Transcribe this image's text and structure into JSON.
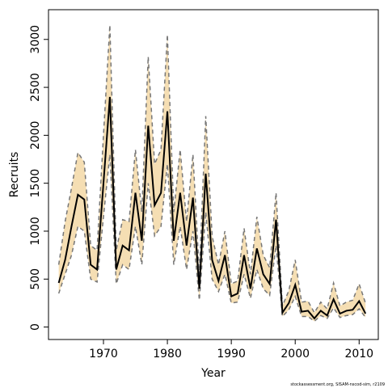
{
  "chart_data": {
    "type": "line",
    "x_label": "Year",
    "y_label": "Recruits",
    "footnote": "stockassessment.org, SISAM-nscod-sim, r2109",
    "x": [
      1963,
      1964,
      1965,
      1966,
      1967,
      1968,
      1969,
      1970,
      1971,
      1972,
      1973,
      1974,
      1975,
      1976,
      1977,
      1978,
      1979,
      1980,
      1981,
      1982,
      1983,
      1984,
      1985,
      1986,
      1987,
      1988,
      1989,
      1990,
      1991,
      1992,
      1993,
      1994,
      1995,
      1996,
      1997,
      1998,
      1999,
      2000,
      2001,
      2002,
      2003,
      2004,
      2005,
      2006,
      2007,
      2008,
      2009,
      2010,
      2011
    ],
    "values": [
      460,
      700,
      1050,
      1380,
      1330,
      650,
      600,
      1500,
      2400,
      600,
      850,
      800,
      1400,
      900,
      2100,
      1270,
      1400,
      2250,
      900,
      1400,
      850,
      1350,
      400,
      1600,
      700,
      480,
      750,
      320,
      350,
      750,
      400,
      820,
      550,
      450,
      1120,
      150,
      250,
      440,
      160,
      170,
      90,
      170,
      120,
      290,
      140,
      170,
      180,
      270,
      140
    ],
    "upper": [
      650,
      1100,
      1450,
      1820,
      1720,
      850,
      800,
      2000,
      3150,
      800,
      1120,
      1100,
      1850,
      1200,
      2820,
      1700,
      1850,
      3050,
      1200,
      1850,
      1100,
      1800,
      550,
      2200,
      950,
      650,
      1000,
      450,
      480,
      1030,
      550,
      1150,
      750,
      620,
      1400,
      220,
      380,
      700,
      260,
      270,
      150,
      260,
      190,
      460,
      220,
      260,
      280,
      450,
      250
    ],
    "lower": [
      350,
      550,
      750,
      1050,
      1000,
      500,
      470,
      1150,
      1800,
      450,
      650,
      600,
      1050,
      650,
      1500,
      950,
      1050,
      1700,
      650,
      1050,
      600,
      1000,
      280,
      1200,
      500,
      370,
      550,
      250,
      260,
      550,
      300,
      600,
      400,
      330,
      850,
      110,
      180,
      320,
      110,
      110,
      60,
      120,
      90,
      200,
      100,
      120,
      130,
      190,
      100
    ],
    "line_color": "#000000",
    "bound_color": "#777777",
    "band_color": "#f5deb3",
    "xlim": [
      1961.4,
      2013.0
    ],
    "ylim": [
      -130,
      3310
    ],
    "xticks": [
      1970,
      1980,
      1990,
      2000,
      2010
    ],
    "yticks": [
      0,
      500,
      1000,
      1500,
      2000,
      2500,
      3000
    ]
  }
}
